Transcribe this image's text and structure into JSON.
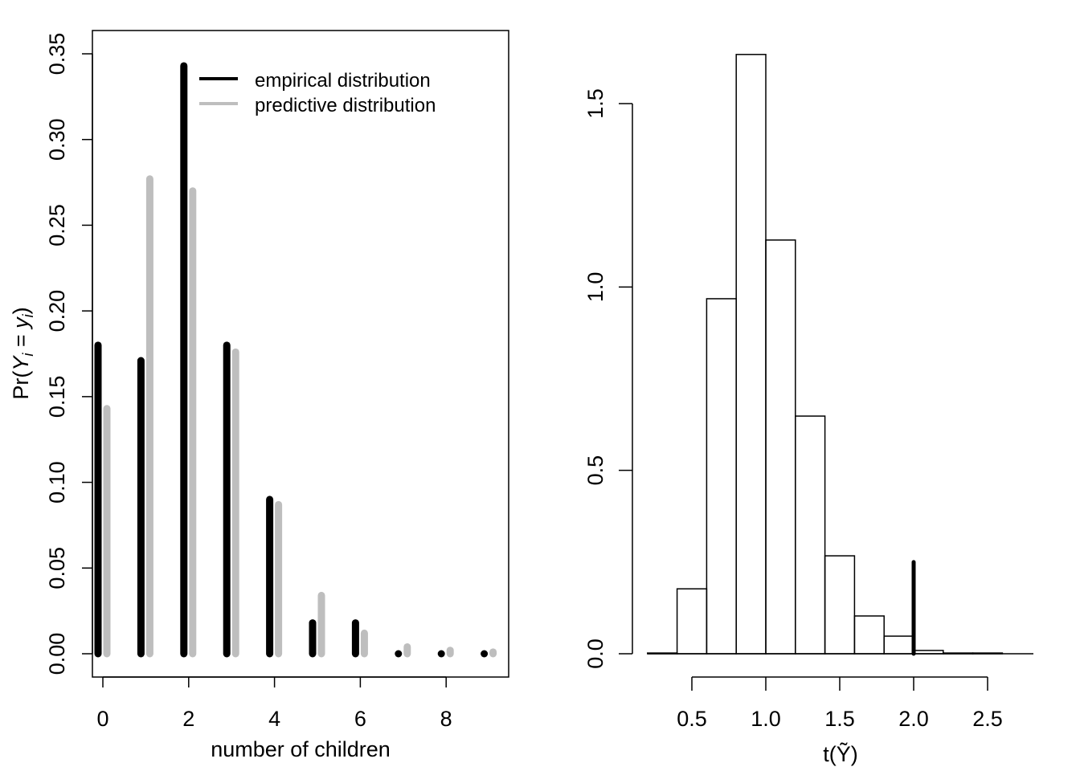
{
  "chart_data": [
    {
      "type": "bar",
      "xlabel": "number of children",
      "ylabel": "Pr(Y_i = y_i)",
      "ylabel_parts": {
        "pre": "Pr(",
        "Y": "Y",
        "sub1": "i",
        "eq": " = ",
        "y": "y",
        "sub2": "i",
        "post": ")"
      },
      "categories": [
        0,
        1,
        2,
        3,
        4,
        5,
        6,
        7,
        8,
        9
      ],
      "xticks": [
        "0",
        "2",
        "4",
        "6",
        "8"
      ],
      "yticks": [
        "0.00",
        "0.05",
        "0.10",
        "0.15",
        "0.20",
        "0.25",
        "0.30",
        "0.35"
      ],
      "ylim": [
        0,
        0.35
      ],
      "legend_position": "top-right",
      "series": [
        {
          "name": "empirical distribution",
          "color": "#000000",
          "values": [
            0.18,
            0.171,
            0.343,
            0.18,
            0.09,
            0.018,
            0.018,
            0.0,
            0.0,
            0.0
          ]
        },
        {
          "name": "predictive distribution",
          "color": "#bebebe",
          "values": [
            0.143,
            0.277,
            0.27,
            0.176,
            0.087,
            0.034,
            0.012,
            0.004,
            0.002,
            0.001
          ]
        }
      ]
    },
    {
      "type": "histogram",
      "xlabel": "t(Ỹ)",
      "xlabel_parts": {
        "pre": "t(",
        "Y": "Y",
        "tilde": "~",
        "post": ")"
      },
      "xticks": [
        "0.5",
        "1.0",
        "1.5",
        "2.0",
        "2.5"
      ],
      "yticks": [
        "0.0",
        "0.5",
        "1.0",
        "1.5"
      ],
      "bin_edges": [
        0.2,
        0.4,
        0.6,
        0.8,
        1.0,
        1.2,
        1.4,
        1.6,
        1.8,
        2.0,
        2.2,
        2.4,
        2.6
      ],
      "density": [
        0.002,
        0.177,
        0.968,
        1.634,
        1.128,
        0.648,
        0.267,
        0.103,
        0.048,
        0.009,
        0.002,
        0.002
      ],
      "observed_value": 2.0,
      "observed_line_height": 0.25
    }
  ]
}
